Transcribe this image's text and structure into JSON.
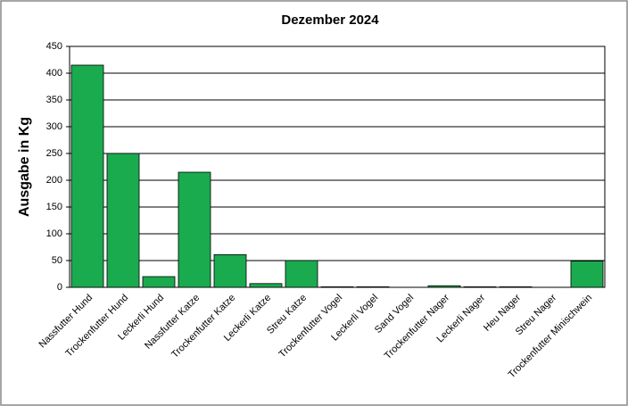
{
  "chart_data": {
    "type": "bar",
    "title": "Dezember 2024",
    "y_label": "Ausgabe in Kg",
    "categories": [
      "Nassfutter Hund",
      "Trockenfutter Hund",
      "Leckerli Hund",
      "Nassfutter Katze",
      "Trockenfutter Katze",
      "Leckerli Katze",
      "Streu Katze",
      "Trockenfutter Vogel",
      "Leckerli Vogel",
      "Sand Vogel",
      "Trockenfutter Nager",
      "Leckerli Nager",
      "Heu Nager",
      "Streu Nager",
      "Trockenfutter Minischwein"
    ],
    "values": [
      415,
      250,
      20,
      215,
      61,
      7,
      50,
      1,
      1,
      0,
      3,
      1,
      1,
      0,
      49
    ],
    "color": "#1aab4f",
    "ylim": [
      0,
      450
    ],
    "yticks": [
      0,
      50,
      100,
      150,
      200,
      250,
      300,
      350,
      400,
      450
    ],
    "grid": true
  }
}
